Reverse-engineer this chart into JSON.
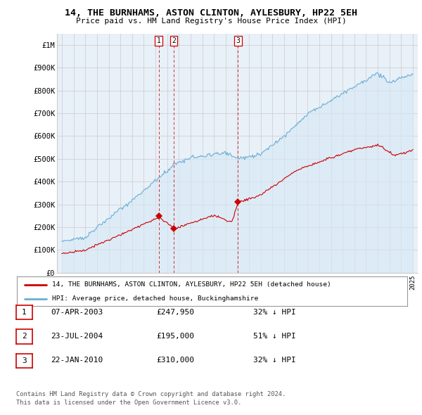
{
  "title": "14, THE BURNHAMS, ASTON CLINTON, AYLESBURY, HP22 5EH",
  "subtitle": "Price paid vs. HM Land Registry's House Price Index (HPI)",
  "ylim": [
    0,
    1050000
  ],
  "yticks": [
    0,
    100000,
    200000,
    300000,
    400000,
    500000,
    600000,
    700000,
    800000,
    900000,
    1000000
  ],
  "ytick_labels": [
    "£0",
    "£100K",
    "£200K",
    "£300K",
    "£400K",
    "£500K",
    "£600K",
    "£700K",
    "£800K",
    "£900K",
    "£1M"
  ],
  "sales": [
    {
      "x": 2003.27,
      "price": 247950,
      "label": "1"
    },
    {
      "x": 2004.56,
      "price": 195000,
      "label": "2"
    },
    {
      "x": 2010.06,
      "price": 310000,
      "label": "3"
    }
  ],
  "hpi_color": "#6baed6",
  "hpi_fill": "#d6e8f5",
  "sold_color": "#cc0000",
  "legend_label_sold": "14, THE BURNHAMS, ASTON CLINTON, AYLESBURY, HP22 5EH (detached house)",
  "legend_label_hpi": "HPI: Average price, detached house, Buckinghamshire",
  "table": [
    {
      "num": "1",
      "date": "07-APR-2003",
      "price": "£247,950",
      "pct": "32% ↓ HPI"
    },
    {
      "num": "2",
      "date": "23-JUL-2004",
      "price": "£195,000",
      "pct": "51% ↓ HPI"
    },
    {
      "num": "3",
      "date": "22-JAN-2010",
      "price": "£310,000",
      "pct": "32% ↓ HPI"
    }
  ],
  "footnote": "Contains HM Land Registry data © Crown copyright and database right 2024.\nThis data is licensed under the Open Government Licence v3.0.",
  "bg_color": "#ffffff",
  "grid_color": "#cccccc"
}
